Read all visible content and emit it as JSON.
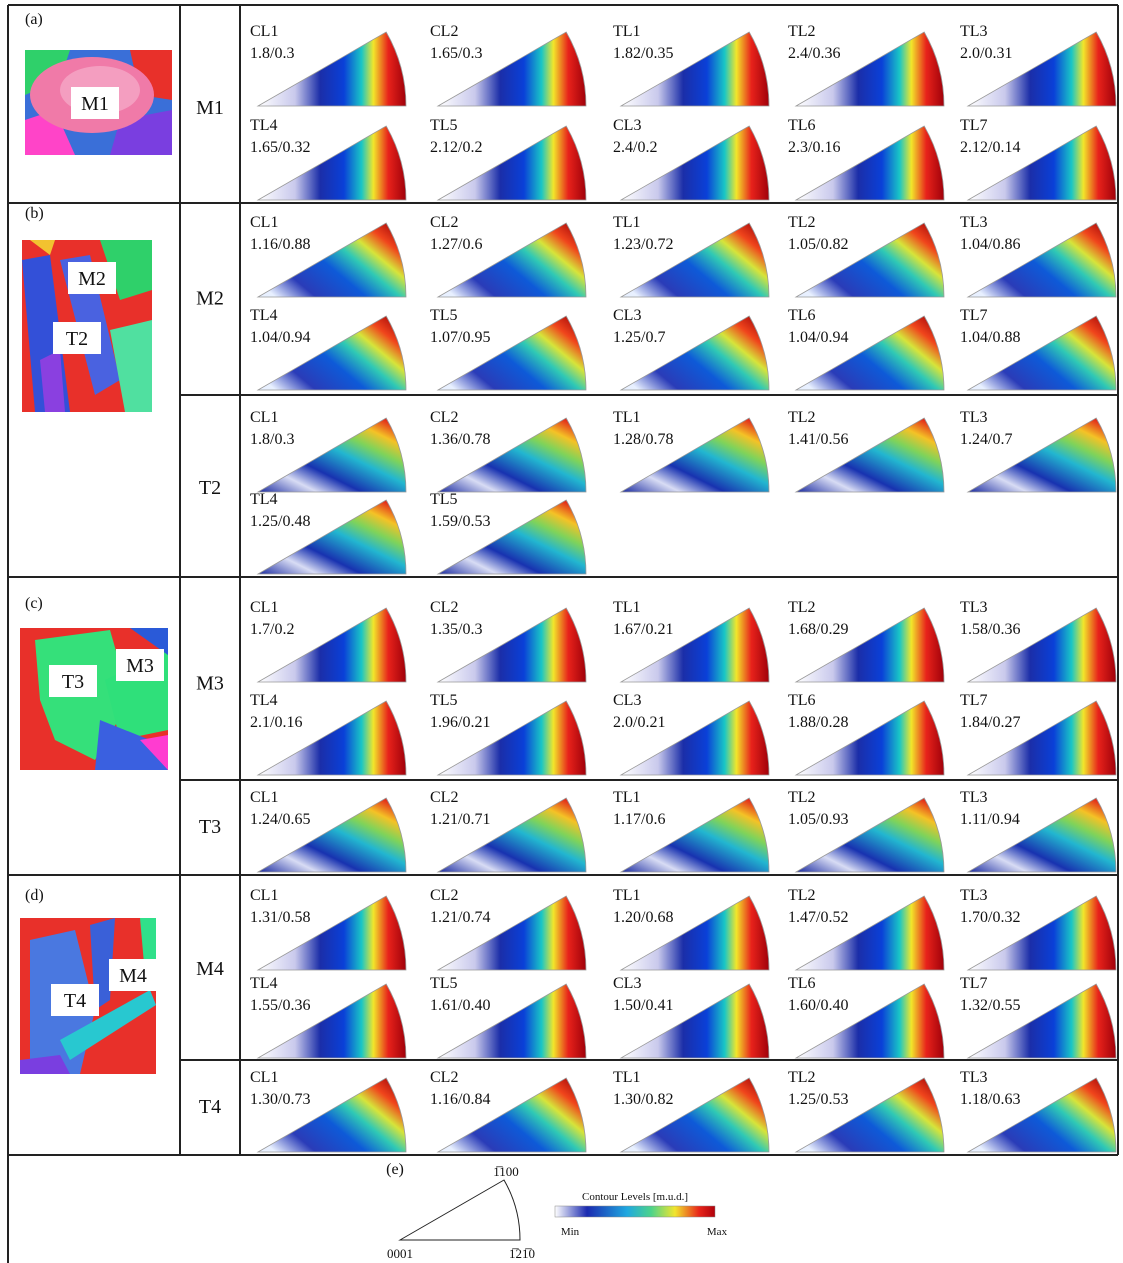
{
  "panels": [
    {
      "label": "(a)",
      "map_labels": [
        "M1"
      ],
      "groups": [
        {
          "name": "M1",
          "plots": [
            {
              "name": "CL1",
              "value": "1.8/0.3"
            },
            {
              "name": "CL2",
              "value": "1.65/0.3"
            },
            {
              "name": "TL1",
              "value": "1.82/0.35"
            },
            {
              "name": "TL2",
              "value": "2.4/0.36"
            },
            {
              "name": "TL3",
              "value": "2.0/0.31"
            },
            {
              "name": "TL4",
              "value": "1.65/0.32"
            },
            {
              "name": "TL5",
              "value": "2.12/0.2"
            },
            {
              "name": "CL3",
              "value": "2.4/0.2"
            },
            {
              "name": "TL6",
              "value": "2.3/0.16"
            },
            {
              "name": "TL7",
              "value": "2.12/0.14"
            }
          ]
        }
      ]
    },
    {
      "label": "(b)",
      "map_labels": [
        "M2",
        "T2"
      ],
      "groups": [
        {
          "name": "M2",
          "plots": [
            {
              "name": "CL1",
              "value": "1.16/0.88"
            },
            {
              "name": "CL2",
              "value": "1.27/0.6"
            },
            {
              "name": "TL1",
              "value": "1.23/0.72"
            },
            {
              "name": "TL2",
              "value": "1.05/0.82"
            },
            {
              "name": "TL3",
              "value": "1.04/0.86"
            },
            {
              "name": "TL4",
              "value": "1.04/0.94"
            },
            {
              "name": "TL5",
              "value": "1.07/0.95"
            },
            {
              "name": "CL3",
              "value": "1.25/0.7"
            },
            {
              "name": "TL6",
              "value": "1.04/0.94"
            },
            {
              "name": "TL7",
              "value": "1.04/0.88"
            }
          ]
        },
        {
          "name": "T2",
          "plots": [
            {
              "name": "CL1",
              "value": "1.8/0.3"
            },
            {
              "name": "CL2",
              "value": "1.36/0.78"
            },
            {
              "name": "TL1",
              "value": "1.28/0.78"
            },
            {
              "name": "TL2",
              "value": "1.41/0.56"
            },
            {
              "name": "TL3",
              "value": "1.24/0.7"
            },
            {
              "name": "TL4",
              "value": "1.25/0.48"
            },
            {
              "name": "TL5",
              "value": "1.59/0.53"
            }
          ]
        }
      ]
    },
    {
      "label": "(c)",
      "map_labels": [
        "T3",
        "M3"
      ],
      "groups": [
        {
          "name": "M3",
          "plots": [
            {
              "name": "CL1",
              "value": "1.7/0.2"
            },
            {
              "name": "CL2",
              "value": "1.35/0.3"
            },
            {
              "name": "TL1",
              "value": "1.67/0.21"
            },
            {
              "name": "TL2",
              "value": "1.68/0.29"
            },
            {
              "name": "TL3",
              "value": "1.58/0.36"
            },
            {
              "name": "TL4",
              "value": "2.1/0.16"
            },
            {
              "name": "TL5",
              "value": "1.96/0.21"
            },
            {
              "name": "CL3",
              "value": "2.0/0.21"
            },
            {
              "name": "TL6",
              "value": "1.88/0.28"
            },
            {
              "name": "TL7",
              "value": "1.84/0.27"
            }
          ]
        },
        {
          "name": "T3",
          "plots": [
            {
              "name": "CL1",
              "value": "1.24/0.65"
            },
            {
              "name": "CL2",
              "value": "1.21/0.71"
            },
            {
              "name": "TL1",
              "value": "1.17/0.6"
            },
            {
              "name": "TL2",
              "value": "1.05/0.93"
            },
            {
              "name": "TL3",
              "value": "1.11/0.94"
            }
          ]
        }
      ]
    },
    {
      "label": "(d)",
      "map_labels": [
        "M4",
        "T4"
      ],
      "groups": [
        {
          "name": "M4",
          "plots": [
            {
              "name": "CL1",
              "value": "1.31/0.58"
            },
            {
              "name": "CL2",
              "value": "1.21/0.74"
            },
            {
              "name": "TL1",
              "value": "1.20/0.68"
            },
            {
              "name": "TL2",
              "value": "1.47/0.52"
            },
            {
              "name": "TL3",
              "value": "1.70/0.32"
            },
            {
              "name": "TL4",
              "value": "1.55/0.36"
            },
            {
              "name": "TL5",
              "value": "1.61/0.40"
            },
            {
              "name": "CL3",
              "value": "1.50/0.41"
            },
            {
              "name": "TL6",
              "value": "1.60/0.40"
            },
            {
              "name": "TL7",
              "value": "1.32/0.55"
            }
          ]
        },
        {
          "name": "T4",
          "plots": [
            {
              "name": "CL1",
              "value": "1.30/0.73"
            },
            {
              "name": "CL2",
              "value": "1.16/0.84"
            },
            {
              "name": "TL1",
              "value": "1.30/0.82"
            },
            {
              "name": "TL2",
              "value": "1.25/0.53"
            },
            {
              "name": "TL3",
              "value": "1.18/0.63"
            }
          ]
        }
      ]
    }
  ],
  "legend": {
    "label": "(e)",
    "pole_top": "1̅100",
    "pole_origin": "0001",
    "pole_right": "1̅21̅0",
    "title": "Contour Levels [m.u.d.]",
    "min": "Min",
    "max": "Max"
  }
}
